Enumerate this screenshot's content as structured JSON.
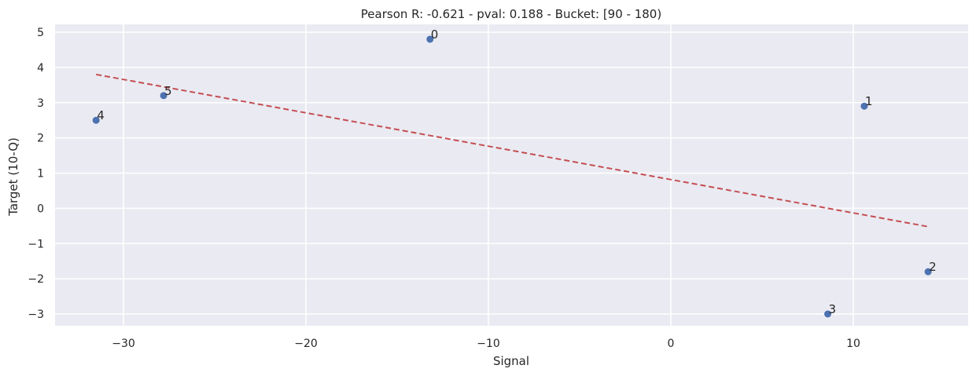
{
  "chart_data": {
    "type": "scatter",
    "title": "Pearson R: -0.621 - pval: 0.188 - Bucket: [90 - 180)",
    "xlabel": "Signal",
    "ylabel": "Target (10-Q)",
    "xlim": [
      -34,
      16.5
    ],
    "ylim": [
      -3.35,
      5.25
    ],
    "xticks": [
      -30,
      -20,
      -10,
      0,
      10
    ],
    "xtick_labels": [
      "−30",
      "−20",
      "−10",
      "0",
      "10"
    ],
    "yticks": [
      -3,
      -2,
      -1,
      0,
      1,
      2,
      3,
      4,
      5
    ],
    "ytick_labels": [
      "−3",
      "−2",
      "−1",
      "0",
      "1",
      "2",
      "3",
      "4",
      "5"
    ],
    "grid": true,
    "points": [
      {
        "label": "0",
        "x": -13.2,
        "y": 4.8
      },
      {
        "label": "1",
        "x": 10.6,
        "y": 2.9
      },
      {
        "label": "2",
        "x": 14.1,
        "y": -1.8
      },
      {
        "label": "3",
        "x": 8.6,
        "y": -3.0
      },
      {
        "label": "4",
        "x": -31.5,
        "y": 2.5
      },
      {
        "label": "5",
        "x": -27.8,
        "y": 3.2
      }
    ],
    "fit_line": {
      "style": "dashed",
      "x": [
        -31.5,
        14.1
      ],
      "y": [
        3.8,
        -0.52
      ]
    },
    "colors": {
      "background": "#eaeaf2",
      "grid": "#ffffff",
      "points": "#4c72b0",
      "fit_line": "#c44e52",
      "text": "#262626"
    }
  }
}
